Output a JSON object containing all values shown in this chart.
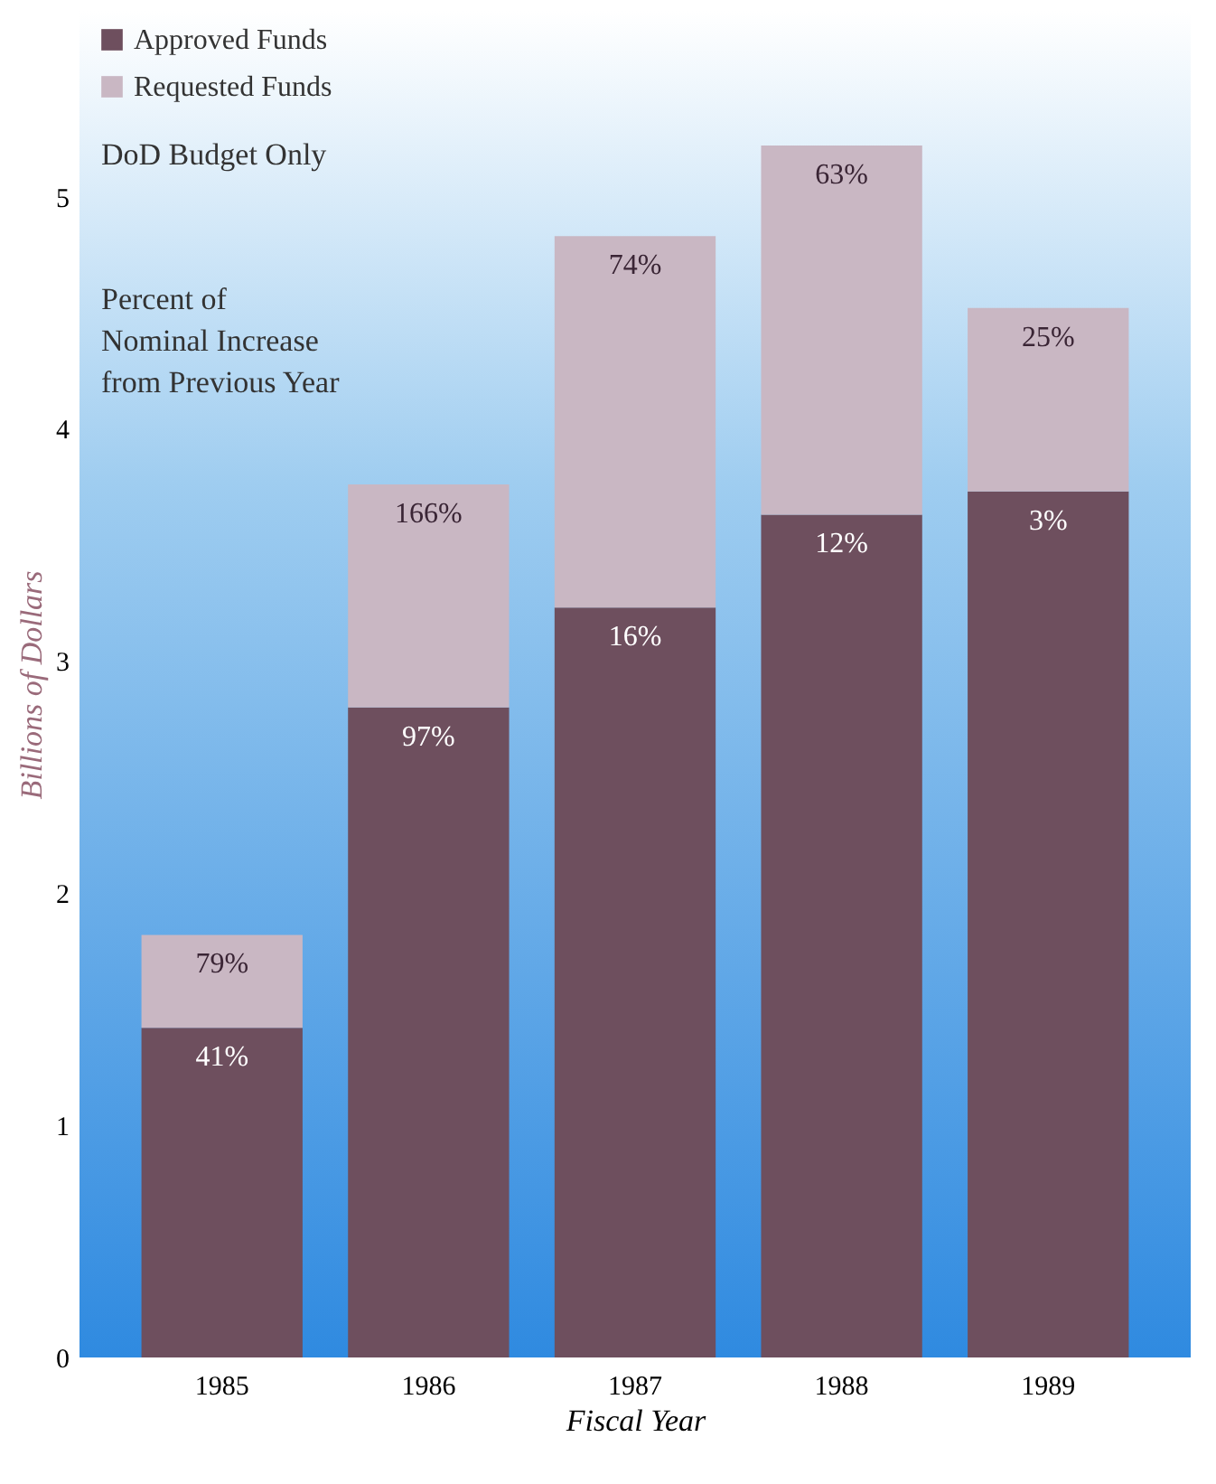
{
  "chart_data": {
    "type": "bar",
    "stacked": true,
    "xlabel": "Fiscal Year",
    "ylabel": "Billions of Dollars",
    "categories": [
      "1985",
      "1986",
      "1987",
      "1988",
      "1989"
    ],
    "series": [
      {
        "name": "Approved Funds",
        "color": "#6e4f5e",
        "values": [
          1.42,
          2.8,
          3.23,
          3.63,
          3.73
        ]
      },
      {
        "name": "Requested Funds",
        "color": "#c9b7c3",
        "values": [
          0.4,
          0.96,
          1.6,
          1.59,
          0.79
        ]
      }
    ],
    "ylim": [
      0,
      5.8
    ],
    "yticks": [
      0,
      1,
      2,
      3,
      4,
      5
    ],
    "legend": "top left",
    "annotations": [
      "DoD Budget Only",
      "Percent of\nNominal Increase\nfrom Previous Year",
      {
        "text": "41%",
        "x": "1985",
        "y": 1.42
      },
      {
        "text": "97%",
        "x": "1986",
        "y": 2.8
      },
      {
        "text": "16%",
        "x": "1987",
        "y": 3.23
      },
      {
        "text": "12%",
        "x": "1988",
        "y": 3.63
      },
      {
        "text": "3%",
        "x": "1989",
        "y": 3.73
      },
      {
        "text": "79%",
        "x": "1985",
        "y": 1.82
      },
      {
        "text": "166%",
        "x": "1986",
        "y": 3.76
      },
      {
        "text": "74%",
        "x": "1987",
        "y": 4.83
      },
      {
        "text": "63%",
        "x": "1988",
        "y": 5.22
      },
      {
        "text": "25%",
        "x": "1989",
        "y": 4.52
      }
    ]
  }
}
